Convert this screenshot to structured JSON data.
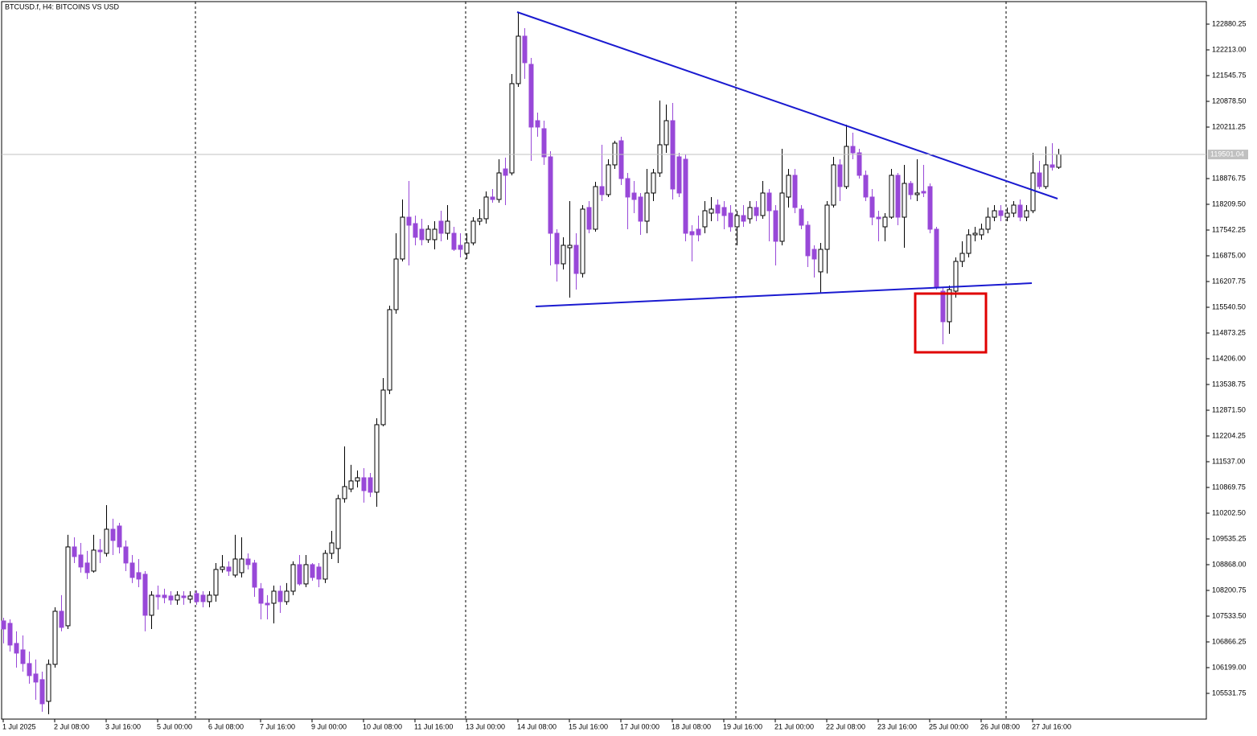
{
  "chart_data": {
    "type": "candlestick",
    "title": "BTCUSD.f, H4:  BITCOINS VS USD",
    "up_color": "#ffffff",
    "down_color": "#9848d8",
    "outline_color": "#000000",
    "last_price": 119501.04,
    "ylim": [
      104864.5,
      123464.1
    ],
    "yticks": [
      122880.25,
      {
        "value": 122213,
        "label": "122213.00"
      },
      121545.75,
      {
        "value": 120878.5,
        "label": "120878.50"
      },
      120211.25,
      118876.75,
      {
        "value": 118209.5,
        "label": "118209.50"
      },
      117542.25,
      {
        "value": 116875,
        "label": "116875.00"
      },
      116207.75,
      {
        "value": 115540.5,
        "label": "115540.50"
      },
      114873.25,
      {
        "value": 114206,
        "label": "114206.00"
      },
      113538.75,
      {
        "value": 112871.5,
        "label": "112871.50"
      },
      112204.25,
      {
        "value": 111537,
        "label": "111537.00"
      },
      110869.75,
      {
        "value": 110202.5,
        "label": "110202.50"
      },
      109535.25,
      {
        "value": 108868,
        "label": "108868.00"
      },
      108200.75,
      {
        "value": 107533.5,
        "label": "107533.50"
      },
      106866.25,
      {
        "value": 106199,
        "label": "106199.00"
      },
      105531.75
    ],
    "categories": [
      "1 Jul 2025",
      null,
      null,
      null,
      null,
      null,
      null,
      null,
      "2 Jul 08:00",
      null,
      null,
      null,
      null,
      null,
      null,
      null,
      "3 Jul 16:00",
      null,
      null,
      null,
      null,
      null,
      null,
      null,
      "5 Jul 00:00",
      null,
      null,
      null,
      null,
      null,
      null,
      null,
      "6 Jul 08:00",
      null,
      null,
      null,
      null,
      null,
      null,
      null,
      "7 Jul 16:00",
      null,
      null,
      null,
      null,
      null,
      null,
      null,
      "9 Jul 00:00",
      null,
      null,
      null,
      null,
      null,
      null,
      null,
      "10 Jul 08:00",
      null,
      null,
      null,
      null,
      null,
      null,
      null,
      "11 Jul 16:00",
      null,
      null,
      null,
      null,
      null,
      null,
      null,
      "13 Jul 00:00",
      null,
      null,
      null,
      null,
      null,
      null,
      null,
      "14 Jul 08:00",
      null,
      null,
      null,
      null,
      null,
      null,
      null,
      "15 Jul 16:00",
      null,
      null,
      null,
      null,
      null,
      null,
      null,
      "17 Jul 00:00",
      null,
      null,
      null,
      null,
      null,
      null,
      null,
      "18 Jul 08:00",
      null,
      null,
      null,
      null,
      null,
      null,
      null,
      "19 Jul 16:00",
      null,
      null,
      null,
      null,
      null,
      null,
      null,
      "21 Jul 00:00",
      null,
      null,
      null,
      null,
      null,
      null,
      null,
      "22 Jul 08:00",
      null,
      null,
      null,
      null,
      null,
      null,
      null,
      "23 Jul 16:00",
      null,
      null,
      null,
      null,
      null,
      null,
      null,
      "25 Jul 00:00",
      null,
      null,
      null,
      null,
      null,
      null,
      null,
      "26 Jul 08:00",
      null,
      null,
      null,
      null,
      null,
      null,
      null,
      "27 Jul 16:00",
      null,
      null,
      null,
      null
    ],
    "open": [
      107410,
      107347,
      106826,
      106659,
      106305,
      106034,
      105888,
      105325,
      106284,
      107660,
      107284,
      109328,
      109119,
      108911,
      108702,
      109245,
      109161,
      109787,
      109870,
      109328,
      108911,
      108661,
      108619,
      107556,
      108077,
      108077,
      108056,
      107952,
      108056,
      107973,
      108119,
      108077,
      107910,
      108077,
      108744,
      108807,
      108598,
      108661,
      109015,
      108911,
      108244,
      107868,
      107868,
      108181,
      107910,
      108181,
      108869,
      108369,
      108869,
      108807,
      108494,
      109161,
      109286,
      110579,
      110829,
      111038,
      111121,
      111121,
      110746,
      112497,
      113394,
      115479,
      116792,
      117876,
      117710,
      117564,
      117293,
      117293,
      117772,
      117459,
      117459,
      117147,
      116938,
      117209,
      117772,
      117835,
      118398,
      118335,
      119127,
      119023,
      121338,
      122568,
      121838,
      120378,
      120170,
      119440,
      117459,
      116667,
      117084,
      117147,
      116417,
      118127,
      117564,
      118669,
      118460,
      119232,
      119857,
      118877,
      118502,
      118398,
      117772,
      118502,
      119023,
      119753,
      120378,
      119440,
      119378,
      117501,
      117564,
      117626,
      117981,
      118189,
      118127,
      117981,
      117626,
      117918,
      117835,
      118127,
      117918,
      118502,
      118043,
      117251,
      118398,
      118961,
      118085,
      117668,
      117042,
      116459,
      117042,
      118189,
      119232,
      118669,
      119711,
      119544,
      118961,
      118398,
      117876,
      117626,
      117876,
      118961,
      117876,
      118752,
      118460,
      118544,
      118669,
      117564,
      115958,
      115166,
      115958,
      116730,
      116938,
      117418,
      117418,
      117564,
      117876,
      118043,
      117876,
      117981,
      118189,
      117876,
      118043,
      119023,
      118669,
      119232,
      119169
    ],
    "high": [
      107493,
      107451,
      107139,
      107034,
      106617,
      106409,
      106096,
      106409,
      107764,
      108077,
      109641,
      109578,
      109432,
      109224,
      109641,
      109536,
      110412,
      110058,
      109953,
      109495,
      109119,
      109015,
      108702,
      108181,
      108327,
      108244,
      108181,
      108181,
      108181,
      108181,
      108202,
      108181,
      108181,
      108911,
      109119,
      108953,
      109641,
      109578,
      109161,
      108994,
      108390,
      108077,
      108327,
      108327,
      108390,
      108953,
      109119,
      109119,
      108911,
      108911,
      109245,
      109745,
      110683,
      111934,
      111455,
      111309,
      111371,
      111246,
      112664,
      113706,
      115583,
      117459,
      118335,
      118815,
      117918,
      117835,
      117668,
      117772,
      118043,
      118189,
      117626,
      117459,
      117459,
      117876,
      118085,
      118544,
      118606,
      119378,
      119419,
      121588,
      123193,
      122776,
      122005,
      120587,
      120378,
      119586,
      117564,
      117355,
      118293,
      117459,
      118189,
      118293,
      118794,
      119753,
      119378,
      119857,
      119961,
      119023,
      118815,
      118502,
      119127,
      119127,
      120900,
      120795,
      120837,
      119544,
      119503,
      117668,
      117918,
      118293,
      118398,
      118335,
      118293,
      118189,
      118043,
      118189,
      118293,
      118293,
      118815,
      118606,
      118189,
      119649,
      119127,
      119127,
      118189,
      117772,
      117147,
      117209,
      118293,
      119440,
      119378,
      120274,
      120066,
      119649,
      119086,
      118606,
      118043,
      117981,
      119127,
      119023,
      119232,
      118815,
      119378,
      119232,
      118752,
      117626,
      116042,
      116104,
      116834,
      117251,
      117564,
      117626,
      117710,
      118127,
      118189,
      118189,
      118127,
      118293,
      118335,
      118189,
      119544,
      119336,
      119711,
      119795,
      119649
    ],
    "low": [
      106826,
      106617,
      106200,
      106096,
      105783,
      105366,
      105054,
      104991,
      106200,
      107139,
      107201,
      108911,
      108661,
      108494,
      108661,
      108911,
      109078,
      109119,
      109161,
      108702,
      108390,
      108285,
      107139,
      107201,
      107702,
      107868,
      107827,
      107827,
      107827,
      107868,
      107827,
      107764,
      107764,
      107910,
      108661,
      108577,
      108536,
      108536,
      108744,
      108035,
      107451,
      107451,
      107347,
      107618,
      107827,
      108077,
      108327,
      108285,
      108452,
      108285,
      108390,
      109015,
      108911,
      110475,
      110746,
      110871,
      110475,
      110621,
      110370,
      112455,
      113289,
      115374,
      116730,
      116625,
      117147,
      117147,
      117209,
      117042,
      117251,
      117293,
      117001,
      116834,
      116792,
      117147,
      117668,
      117710,
      118252,
      118252,
      118189,
      118961,
      121254,
      121463,
      119336,
      119961,
      119232,
      116625,
      116208,
      116521,
      115791,
      116000,
      116313,
      117459,
      117501,
      118293,
      118398,
      119127,
      118710,
      117564,
      117981,
      117418,
      117459,
      118293,
      118919,
      119544,
      118335,
      118398,
      117251,
      116730,
      117251,
      117459,
      117772,
      117772,
      117564,
      117501,
      117147,
      117626,
      117710,
      117772,
      117835,
      117251,
      116625,
      117147,
      118127,
      117981,
      117564,
      116584,
      116313,
      115896,
      116417,
      118127,
      118293,
      118606,
      119378,
      118877,
      118293,
      117668,
      117251,
      117251,
      117835,
      117668,
      117084,
      118335,
      118293,
      118398,
      117459,
      116000,
      114582,
      114853,
      115791,
      116584,
      116834,
      117251,
      117293,
      117459,
      117772,
      117772,
      117772,
      117876,
      117772,
      117772,
      117981,
      118606,
      118606,
      119086,
      119127
    ],
    "close": [
      107201,
      106784,
      106576,
      106305,
      105992,
      105825,
      105262,
      106284,
      107660,
      107243,
      109328,
      109078,
      108807,
      108661,
      109245,
      109203,
      109787,
      109495,
      109328,
      108911,
      108536,
      108494,
      107556,
      108077,
      108035,
      108014,
      107952,
      108077,
      108014,
      108056,
      107910,
      107910,
      108077,
      108744,
      108807,
      108702,
      109015,
      109015,
      108869,
      108285,
      107868,
      107827,
      108181,
      107910,
      108181,
      108869,
      108369,
      108869,
      108536,
      108494,
      109161,
      109432,
      110579,
      110892,
      111038,
      111121,
      110787,
      110746,
      112497,
      113394,
      115479,
      116792,
      117876,
      117668,
      117355,
      117293,
      117564,
      117564,
      117459,
      117772,
      117042,
      117042,
      117209,
      117772,
      117835,
      118398,
      118335,
      119023,
      118961,
      121338,
      122568,
      121880,
      120212,
      120212,
      119440,
      117459,
      116667,
      117147,
      117147,
      116417,
      118085,
      117564,
      118669,
      118460,
      119232,
      119795,
      118877,
      118398,
      118335,
      117772,
      118502,
      119023,
      119753,
      120378,
      118606,
      118502,
      117459,
      117418,
      117418,
      118043,
      118085,
      117981,
      117918,
      117626,
      117918,
      117772,
      118127,
      117918,
      118502,
      118043,
      117251,
      118502,
      118961,
      118127,
      117668,
      116876,
      116792,
      117042,
      118189,
      119232,
      118669,
      119711,
      119544,
      118961,
      118398,
      117876,
      117835,
      117876,
      118961,
      117876,
      118752,
      118460,
      118502,
      118502,
      117564,
      116042,
      115166,
      116000,
      116730,
      116938,
      117418,
      117459,
      117564,
      117876,
      118043,
      117918,
      117981,
      118189,
      117876,
      118043,
      119023,
      118669,
      119232,
      119169,
      119501.04
    ]
  }
}
